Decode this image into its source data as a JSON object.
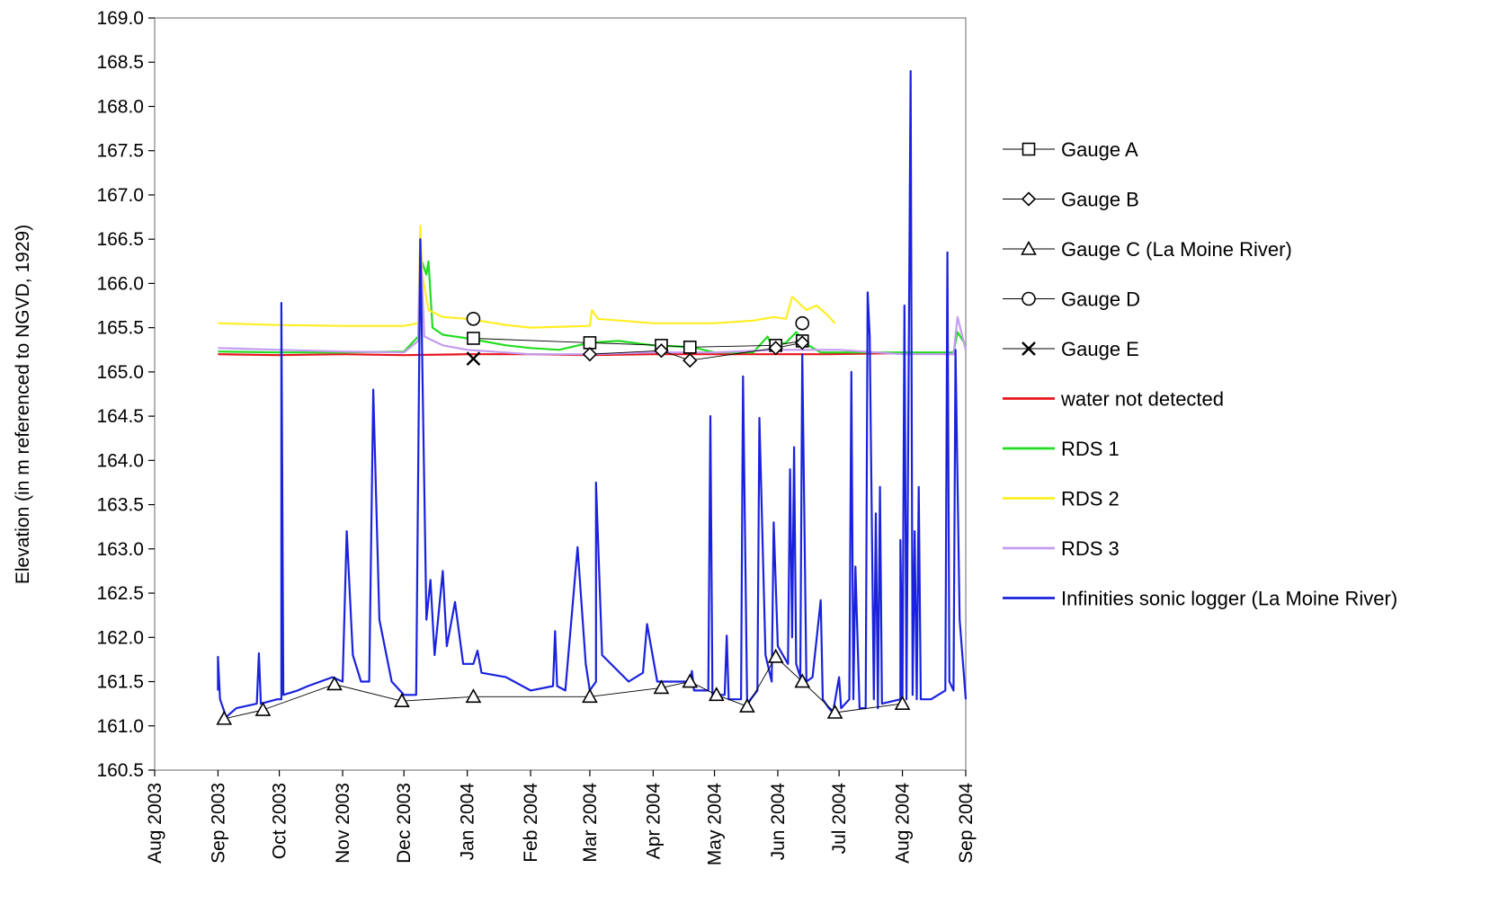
{
  "chart_data": {
    "type": "line",
    "title": "",
    "xlabel": "",
    "ylabel": "Elevation (in m referenced to NGVD, 1929)",
    "ylim": [
      160.5,
      169.0
    ],
    "xlim": [
      "2003-08-01",
      "2004-09-01"
    ],
    "grid": false,
    "legend_position": "right",
    "y_ticks": [
      "160.5",
      "161.0",
      "161.5",
      "162.0",
      "162.5",
      "163.0",
      "163.5",
      "164.0",
      "164.5",
      "165.0",
      "165.5",
      "166.0",
      "166.5",
      "167.0",
      "167.5",
      "168.0",
      "168.5",
      "169.0"
    ],
    "x_ticks": [
      {
        "date": "2003-08-01",
        "label": "Aug 2003"
      },
      {
        "date": "2003-09-01",
        "label": "Sep 2003"
      },
      {
        "date": "2003-10-01",
        "label": "Oct 2003"
      },
      {
        "date": "2003-11-01",
        "label": "Nov 2003"
      },
      {
        "date": "2003-12-01",
        "label": "Dec 2003"
      },
      {
        "date": "2004-01-01",
        "label": "Jan 2004"
      },
      {
        "date": "2004-02-01",
        "label": "Feb 2004"
      },
      {
        "date": "2004-03-01",
        "label": "Mar 2004"
      },
      {
        "date": "2004-04-01",
        "label": "Apr 2004"
      },
      {
        "date": "2004-05-01",
        "label": "May 2004"
      },
      {
        "date": "2004-06-01",
        "label": "Jun 2004"
      },
      {
        "date": "2004-07-01",
        "label": "Jul 2004"
      },
      {
        "date": "2004-08-01",
        "label": "Aug 2004"
      },
      {
        "date": "2004-09-01",
        "label": "Sep 2004"
      }
    ],
    "series": [
      {
        "name": "Gauge A",
        "kind": "marker-line",
        "marker": "square",
        "color": "#000000",
        "points": [
          [
            "2004-01-04",
            165.38
          ],
          [
            "2004-03-01",
            165.33
          ],
          [
            "2004-04-05",
            165.3
          ],
          [
            "2004-04-19",
            165.28
          ],
          [
            "2004-05-31",
            165.3
          ],
          [
            "2004-06-13",
            165.35
          ]
        ]
      },
      {
        "name": "Gauge B",
        "kind": "marker-line",
        "marker": "diamond",
        "color": "#000000",
        "points": [
          [
            "2004-03-01",
            165.2
          ],
          [
            "2004-04-05",
            165.24
          ],
          [
            "2004-04-19",
            165.13
          ],
          [
            "2004-05-31",
            165.27
          ],
          [
            "2004-06-13",
            165.33
          ]
        ]
      },
      {
        "name": "Gauge C (La Moine River)",
        "kind": "marker-line",
        "marker": "triangle",
        "color": "#000000",
        "points": [
          [
            "2003-09-04",
            161.08
          ],
          [
            "2003-09-23",
            161.18
          ],
          [
            "2003-10-28",
            161.47
          ],
          [
            "2003-11-30",
            161.28
          ],
          [
            "2004-01-04",
            161.33
          ],
          [
            "2004-03-01",
            161.33
          ],
          [
            "2004-04-05",
            161.43
          ],
          [
            "2004-04-19",
            161.5
          ],
          [
            "2004-05-02",
            161.35
          ],
          [
            "2004-05-17",
            161.22
          ],
          [
            "2004-05-31",
            161.78
          ],
          [
            "2004-06-13",
            161.5
          ],
          [
            "2004-06-29",
            161.15
          ],
          [
            "2004-08-01",
            161.25
          ]
        ]
      },
      {
        "name": "Gauge D",
        "kind": "marker",
        "marker": "circle",
        "color": "#000000",
        "points": [
          [
            "2004-01-04",
            165.6
          ],
          [
            "2004-06-13",
            165.55
          ]
        ]
      },
      {
        "name": "Gauge E",
        "kind": "marker",
        "marker": "x",
        "color": "#000000",
        "points": [
          [
            "2004-01-04",
            165.15
          ]
        ]
      },
      {
        "name": "water not detected",
        "kind": "line",
        "color": "#e8141c",
        "points": [
          [
            "2003-09-01",
            165.2
          ],
          [
            "2003-10-01",
            165.19
          ],
          [
            "2003-11-01",
            165.2
          ],
          [
            "2003-12-01",
            165.19
          ],
          [
            "2004-01-01",
            165.2
          ],
          [
            "2004-02-01",
            165.2
          ],
          [
            "2004-03-01",
            165.19
          ],
          [
            "2004-04-01",
            165.2
          ],
          [
            "2004-05-01",
            165.2
          ],
          [
            "2004-05-26",
            165.2
          ],
          [
            "2004-06-26",
            165.2
          ],
          [
            "2004-07-26",
            165.21
          ],
          [
            "2004-08-27",
            165.2
          ]
        ]
      },
      {
        "name": "RDS 1",
        "kind": "line",
        "color": "#22dd22",
        "points": [
          [
            "2003-09-01",
            165.23
          ],
          [
            "2003-10-01",
            165.22
          ],
          [
            "2003-11-01",
            165.22
          ],
          [
            "2003-12-01",
            165.23
          ],
          [
            "2003-12-08",
            165.4
          ],
          [
            "2003-12-09",
            166.3
          ],
          [
            "2003-12-12",
            166.1
          ],
          [
            "2003-12-13",
            166.25
          ],
          [
            "2003-12-15",
            165.5
          ],
          [
            "2003-12-20",
            165.42
          ],
          [
            "2004-01-01",
            165.38
          ],
          [
            "2004-01-20",
            165.3
          ],
          [
            "2004-02-01",
            165.27
          ],
          [
            "2004-02-15",
            165.25
          ],
          [
            "2004-03-01",
            165.33
          ],
          [
            "2004-03-15",
            165.35
          ],
          [
            "2004-04-01",
            165.3
          ],
          [
            "2004-04-20",
            165.28
          ],
          [
            "2004-05-01",
            165.22
          ],
          [
            "2004-05-20",
            165.22
          ],
          [
            "2004-05-27",
            165.4
          ],
          [
            "2004-05-29",
            165.3
          ],
          [
            "2004-06-05",
            165.33
          ],
          [
            "2004-06-10",
            165.45
          ],
          [
            "2004-06-16",
            165.3
          ],
          [
            "2004-06-22",
            165.22
          ],
          [
            "2004-07-15",
            165.22
          ],
          [
            "2004-08-01",
            165.22
          ],
          [
            "2004-08-26",
            165.22
          ],
          [
            "2004-08-28",
            165.45
          ],
          [
            "2004-09-01",
            165.3
          ]
        ]
      },
      {
        "name": "RDS 2",
        "kind": "line",
        "color": "#ffee22",
        "points": [
          [
            "2003-09-01",
            165.55
          ],
          [
            "2003-10-01",
            165.53
          ],
          [
            "2003-11-01",
            165.52
          ],
          [
            "2003-12-01",
            165.52
          ],
          [
            "2003-12-08",
            165.55
          ],
          [
            "2003-12-09",
            166.65
          ],
          [
            "2003-12-10",
            166.1
          ],
          [
            "2003-12-13",
            165.7
          ],
          [
            "2003-12-20",
            165.62
          ],
          [
            "2004-01-01",
            165.6
          ],
          [
            "2004-01-20",
            165.53
          ],
          [
            "2004-02-01",
            165.5
          ],
          [
            "2004-03-01",
            165.52
          ],
          [
            "2004-03-02",
            165.7
          ],
          [
            "2004-03-05",
            165.6
          ],
          [
            "2004-04-01",
            165.55
          ],
          [
            "2004-05-01",
            165.55
          ],
          [
            "2004-05-20",
            165.58
          ],
          [
            "2004-05-30",
            165.62
          ],
          [
            "2004-06-05",
            165.6
          ],
          [
            "2004-06-08",
            165.85
          ],
          [
            "2004-06-15",
            165.7
          ],
          [
            "2004-06-20",
            165.75
          ],
          [
            "2004-06-25",
            165.65
          ],
          [
            "2004-06-29",
            165.55
          ]
        ]
      },
      {
        "name": "RDS 3",
        "kind": "line",
        "color": "#c49cf0",
        "points": [
          [
            "2003-09-01",
            165.27
          ],
          [
            "2003-10-01",
            165.25
          ],
          [
            "2003-11-01",
            165.23
          ],
          [
            "2003-12-01",
            165.22
          ],
          [
            "2003-12-08",
            165.35
          ],
          [
            "2003-12-09",
            166.5
          ],
          [
            "2003-12-11",
            165.4
          ],
          [
            "2003-12-20",
            165.3
          ],
          [
            "2004-01-01",
            165.25
          ],
          [
            "2004-02-01",
            165.2
          ],
          [
            "2004-03-01",
            165.2
          ],
          [
            "2004-04-01",
            165.22
          ],
          [
            "2004-05-01",
            165.22
          ],
          [
            "2004-06-01",
            165.25
          ],
          [
            "2004-07-01",
            165.25
          ],
          [
            "2004-08-01",
            165.2
          ],
          [
            "2004-08-26",
            165.2
          ],
          [
            "2004-08-28",
            165.62
          ],
          [
            "2004-09-01",
            165.25
          ]
        ]
      },
      {
        "name": "Infinities sonic logger (La Moine River)",
        "kind": "line",
        "color": "#1a22dd",
        "points": [
          [
            "2003-09-01",
            161.4
          ],
          [
            "2003-09-01",
            161.78
          ],
          [
            "2003-09-02",
            161.3
          ],
          [
            "2003-09-05",
            161.1
          ],
          [
            "2003-09-10",
            161.2
          ],
          [
            "2003-09-20",
            161.25
          ],
          [
            "2003-09-21",
            161.82
          ],
          [
            "2003-09-22",
            161.25
          ],
          [
            "2003-09-30",
            161.3
          ],
          [
            "2003-10-02",
            161.3
          ],
          [
            "2003-10-02",
            165.78
          ],
          [
            "2003-10-03",
            161.35
          ],
          [
            "2003-10-10",
            161.4
          ],
          [
            "2003-10-15",
            161.45
          ],
          [
            "2003-10-27",
            161.55
          ],
          [
            "2003-11-01",
            161.5
          ],
          [
            "2003-11-03",
            163.2
          ],
          [
            "2003-11-06",
            161.8
          ],
          [
            "2003-11-10",
            161.5
          ],
          [
            "2003-11-14",
            161.5
          ],
          [
            "2003-11-16",
            164.8
          ],
          [
            "2003-11-19",
            162.2
          ],
          [
            "2003-11-25",
            161.5
          ],
          [
            "2003-12-01",
            161.35
          ],
          [
            "2003-12-07",
            161.35
          ],
          [
            "2003-12-09",
            166.5
          ],
          [
            "2003-12-12",
            162.2
          ],
          [
            "2003-12-14",
            162.65
          ],
          [
            "2003-12-16",
            161.8
          ],
          [
            "2003-12-20",
            162.75
          ],
          [
            "2003-12-22",
            161.9
          ],
          [
            "2003-12-26",
            162.4
          ],
          [
            "2003-12-30",
            161.7
          ],
          [
            "2004-01-04",
            161.7
          ],
          [
            "2004-01-06",
            161.85
          ],
          [
            "2004-01-08",
            161.6
          ],
          [
            "2004-01-20",
            161.55
          ],
          [
            "2004-02-01",
            161.4
          ],
          [
            "2004-02-12",
            161.45
          ],
          [
            "2004-02-13",
            162.07
          ],
          [
            "2004-02-14",
            161.45
          ],
          [
            "2004-02-18",
            161.4
          ],
          [
            "2004-02-24",
            163.02
          ],
          [
            "2004-02-28",
            161.7
          ],
          [
            "2004-03-01",
            161.4
          ],
          [
            "2004-03-04",
            161.5
          ],
          [
            "2004-03-04",
            163.75
          ],
          [
            "2004-03-07",
            161.8
          ],
          [
            "2004-03-20",
            161.5
          ],
          [
            "2004-03-27",
            161.6
          ],
          [
            "2004-03-29",
            162.15
          ],
          [
            "2004-04-03",
            161.5
          ],
          [
            "2004-04-19",
            161.5
          ],
          [
            "2004-04-20",
            161.62
          ],
          [
            "2004-04-21",
            161.4
          ],
          [
            "2004-04-28",
            161.4
          ],
          [
            "2004-04-29",
            164.5
          ],
          [
            "2004-04-30",
            161.35
          ],
          [
            "2004-05-06",
            161.35
          ],
          [
            "2004-05-07",
            162.02
          ],
          [
            "2004-05-08",
            161.3
          ],
          [
            "2004-05-14",
            161.3
          ],
          [
            "2004-05-15",
            164.95
          ],
          [
            "2004-05-17",
            161.25
          ],
          [
            "2004-05-22",
            161.4
          ],
          [
            "2004-05-23",
            164.48
          ],
          [
            "2004-05-26",
            161.8
          ],
          [
            "2004-05-29",
            161.5
          ],
          [
            "2004-05-30",
            163.3
          ],
          [
            "2004-06-01",
            161.9
          ],
          [
            "2004-06-06",
            161.7
          ],
          [
            "2004-06-07",
            163.9
          ],
          [
            "2004-06-08",
            162.0
          ],
          [
            "2004-06-09",
            164.15
          ],
          [
            "2004-06-10",
            161.7
          ],
          [
            "2004-06-12",
            161.55
          ],
          [
            "2004-06-13",
            165.2
          ],
          [
            "2004-06-15",
            161.5
          ],
          [
            "2004-06-18",
            161.55
          ],
          [
            "2004-06-22",
            162.42
          ],
          [
            "2004-06-23",
            161.3
          ],
          [
            "2004-06-26",
            161.2
          ],
          [
            "2004-06-28",
            161.15
          ],
          [
            "2004-07-01",
            161.55
          ],
          [
            "2004-07-02",
            161.2
          ],
          [
            "2004-07-06",
            161.3
          ],
          [
            "2004-07-07",
            165.0
          ],
          [
            "2004-07-08",
            161.3
          ],
          [
            "2004-07-09",
            162.8
          ],
          [
            "2004-07-11",
            161.2
          ],
          [
            "2004-07-14",
            161.2
          ],
          [
            "2004-07-15",
            165.9
          ],
          [
            "2004-07-16",
            165.4
          ],
          [
            "2004-07-18",
            161.3
          ],
          [
            "2004-07-19",
            163.4
          ],
          [
            "2004-07-20",
            161.2
          ],
          [
            "2004-07-21",
            163.7
          ],
          [
            "2004-07-22",
            161.25
          ],
          [
            "2004-07-31",
            161.3
          ],
          [
            "2004-07-31",
            163.1
          ],
          [
            "2004-08-01",
            161.3
          ],
          [
            "2004-08-02",
            165.75
          ],
          [
            "2004-08-03",
            161.3
          ],
          [
            "2004-08-05",
            168.4
          ],
          [
            "2004-08-06",
            161.35
          ],
          [
            "2004-08-07",
            163.2
          ],
          [
            "2004-08-08",
            161.3
          ],
          [
            "2004-08-09",
            163.7
          ],
          [
            "2004-08-10",
            161.3
          ],
          [
            "2004-08-15",
            161.3
          ],
          [
            "2004-08-22",
            161.4
          ],
          [
            "2004-08-23",
            166.35
          ],
          [
            "2004-08-24",
            161.5
          ],
          [
            "2004-08-26",
            161.4
          ],
          [
            "2004-08-27",
            165.25
          ],
          [
            "2004-08-29",
            162.2
          ],
          [
            "2004-09-01",
            161.3
          ]
        ]
      }
    ]
  }
}
